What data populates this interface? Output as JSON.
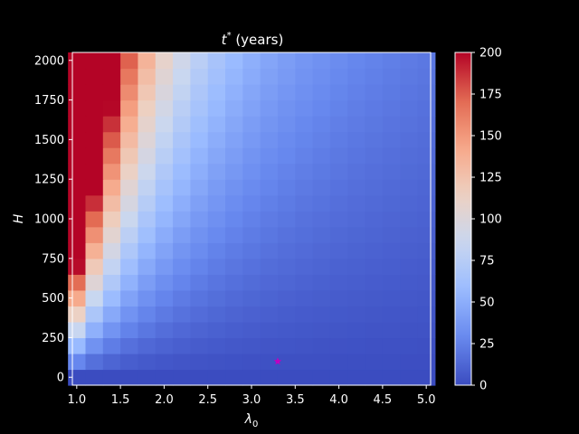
{
  "chart_data": {
    "type": "heatmap",
    "title_main": "t",
    "title_sup": "*",
    "title_suffix": " (years)",
    "xlabel_main": "λ",
    "xlabel_sub": "0",
    "ylabel": "H",
    "x_min": 0.95,
    "x_max": 5.05,
    "y_min": -50,
    "y_max": 2050,
    "x_cells": 21,
    "y_cells": 21,
    "x_start": 1.0,
    "x_step": 0.2,
    "y_start": 0,
    "y_step": 100,
    "x_ticks": [
      1.0,
      1.5,
      2.0,
      2.5,
      3.0,
      3.5,
      4.0,
      4.5,
      5.0
    ],
    "x_tick_labels": [
      "1.0",
      "1.5",
      "2.0",
      "2.5",
      "3.0",
      "3.5",
      "4.0",
      "4.5",
      "5.0"
    ],
    "y_ticks": [
      0,
      250,
      500,
      750,
      1000,
      1250,
      1500,
      1750,
      2000
    ],
    "y_tick_labels": [
      "0",
      "250",
      "500",
      "750",
      "1000",
      "1250",
      "1500",
      "1750",
      "2000"
    ],
    "vmin": 0,
    "vmax": 200,
    "colorbar_ticks": [
      0,
      25,
      50,
      75,
      100,
      125,
      150,
      175,
      200
    ],
    "colorbar_tick_labels": [
      "0",
      "25",
      "50",
      "75",
      "100",
      "125",
      "150",
      "175",
      "200"
    ],
    "colormap": "coolwarm",
    "colormap_stops": [
      "#3b4cc0",
      "#6788ee",
      "#9abbff",
      "#c9d7f0",
      "#edd1c2",
      "#f7a889",
      "#e26952",
      "#b40426"
    ],
    "value_model": "value ≈ 0.10 × H / (λ0 − 0.5)^1.5, clipped to [0, 200]",
    "marker": {
      "x": 3.3,
      "y": 100,
      "color": "#c000c0",
      "symbol": "star"
    },
    "grid": false,
    "background": "#000000"
  }
}
